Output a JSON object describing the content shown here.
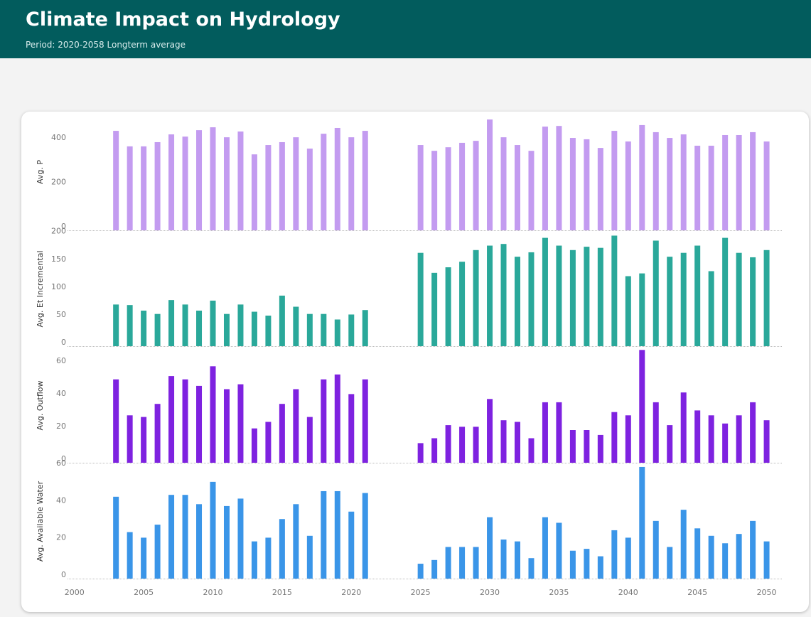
{
  "header": {
    "title": "Climate Impact on Hydrology",
    "subtitle": "Period: 2020-2058 Longterm average"
  },
  "chart_data": [
    {
      "type": "bar",
      "y_label": "Avg. P",
      "color": "#c39bf0",
      "x": [
        2003,
        2004,
        2005,
        2006,
        2007,
        2008,
        2009,
        2010,
        2011,
        2012,
        2013,
        2014,
        2015,
        2016,
        2017,
        2018,
        2019,
        2020,
        2021,
        2025,
        2026,
        2027,
        2028,
        2029,
        2030,
        2031,
        2032,
        2033,
        2034,
        2035,
        2036,
        2037,
        2038,
        2039,
        2040,
        2041,
        2042,
        2043,
        2044,
        2045,
        2046,
        2047,
        2048,
        2049,
        2050
      ],
      "values": [
        448,
        378,
        378,
        397,
        432,
        422,
        451,
        464,
        419,
        445,
        342,
        384,
        397,
        419,
        368,
        435,
        461,
        419,
        448,
        384,
        358,
        374,
        394,
        403,
        499,
        419,
        384,
        358,
        467,
        470,
        416,
        410,
        371,
        448,
        400,
        474,
        442,
        416,
        432,
        381,
        381,
        429,
        429,
        442,
        400
      ],
      "xlim": [
        1999.5,
        2051.1
      ],
      "ylim": [
        0,
        525
      ],
      "yticks": [
        0,
        200,
        400
      ],
      "grid": false
    },
    {
      "type": "bar",
      "y_label": "Avg. Et Incremental",
      "color": "#2aa89a",
      "x": [
        2003,
        2004,
        2005,
        2006,
        2007,
        2008,
        2009,
        2010,
        2011,
        2012,
        2013,
        2014,
        2015,
        2016,
        2017,
        2018,
        2019,
        2020,
        2021,
        2025,
        2026,
        2027,
        2028,
        2029,
        2030,
        2031,
        2032,
        2033,
        2034,
        2035,
        2036,
        2037,
        2038,
        2039,
        2040,
        2041,
        2042,
        2043,
        2044,
        2045,
        2046,
        2047,
        2048,
        2049,
        2050
      ],
      "values": [
        75,
        74,
        64,
        58,
        83,
        75,
        64,
        82,
        58,
        75,
        62,
        55,
        91,
        71,
        58,
        58,
        48,
        57,
        65,
        168,
        132,
        142,
        152,
        173,
        181,
        184,
        161,
        169,
        195,
        181,
        173,
        179,
        177,
        199,
        126,
        131,
        190,
        161,
        168,
        181,
        135,
        195,
        168,
        160,
        173
      ],
      "xlim": [
        1999.5,
        2051.1
      ],
      "ylim": [
        0,
        206
      ],
      "yticks": [
        0,
        50,
        100,
        150,
        200
      ],
      "grid": false
    },
    {
      "type": "bar",
      "y_label": "Avg. Outflow",
      "color": "#7e22e0",
      "x": [
        2003,
        2004,
        2005,
        2006,
        2007,
        2008,
        2009,
        2010,
        2011,
        2012,
        2013,
        2014,
        2015,
        2016,
        2017,
        2018,
        2019,
        2020,
        2021,
        2025,
        2026,
        2027,
        2028,
        2029,
        2030,
        2031,
        2032,
        2033,
        2034,
        2035,
        2036,
        2037,
        2038,
        2039,
        2040,
        2041,
        2042,
        2043,
        2044,
        2045,
        2046,
        2047,
        2048,
        2049,
        2050
      ],
      "values": [
        51,
        29,
        28,
        36,
        53,
        51,
        47,
        59,
        45,
        48,
        21,
        25,
        36,
        45,
        28,
        51,
        54,
        42,
        51,
        12,
        15,
        23,
        22,
        22,
        39,
        26,
        25,
        15,
        37,
        37,
        20,
        20,
        17,
        31,
        29,
        69,
        37,
        23,
        43,
        32,
        29,
        24,
        29,
        37,
        26
      ],
      "xlim": [
        1999.5,
        2051.1
      ],
      "ylim": [
        0,
        70
      ],
      "yticks": [
        0,
        20,
        40,
        60
      ],
      "grid": false
    },
    {
      "type": "bar",
      "y_label": "Avg. Available Water",
      "color": "#3a95e8",
      "x": [
        2003,
        2004,
        2005,
        2006,
        2007,
        2008,
        2009,
        2010,
        2011,
        2012,
        2013,
        2014,
        2015,
        2016,
        2017,
        2018,
        2019,
        2020,
        2021,
        2025,
        2026,
        2027,
        2028,
        2029,
        2030,
        2031,
        2032,
        2033,
        2034,
        2035,
        2036,
        2037,
        2038,
        2039,
        2040,
        2041,
        2042,
        2043,
        2044,
        2045,
        2046,
        2047,
        2048,
        2049,
        2050
      ],
      "values": [
        44,
        25,
        22,
        29,
        45,
        45,
        40,
        52,
        39,
        43,
        20,
        22,
        32,
        40,
        23,
        47,
        47,
        36,
        46,
        8,
        10,
        17,
        17,
        17,
        33,
        21,
        20,
        11,
        33,
        30,
        15,
        16,
        12,
        26,
        22,
        60,
        31,
        17,
        37,
        27,
        23,
        19,
        24,
        31,
        20
      ],
      "xlim": [
        1999.5,
        2051.1
      ],
      "ylim": [
        0,
        61.5
      ],
      "yticks": [
        0,
        20,
        40,
        60
      ],
      "xticks": [
        2000,
        2005,
        2010,
        2015,
        2020,
        2025,
        2030,
        2035,
        2040,
        2045,
        2050
      ],
      "grid": false
    }
  ]
}
